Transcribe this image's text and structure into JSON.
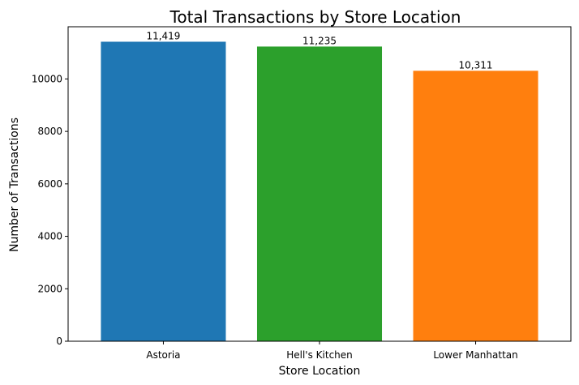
{
  "chart_data": {
    "type": "bar",
    "title": "Total Transactions by Store Location",
    "xlabel": "Store Location",
    "ylabel": "Number of Transactions",
    "categories": [
      "Astoria",
      "Hell's Kitchen",
      "Lower Manhattan"
    ],
    "values": [
      11419,
      11235,
      10311
    ],
    "data_labels": [
      "11,419",
      "11,235",
      "10,311"
    ],
    "colors": [
      "#1f77b4",
      "#2ca02c",
      "#ff7f0e"
    ],
    "ylim": [
      0,
      11990
    ],
    "yticks": [
      0,
      2000,
      4000,
      6000,
      8000,
      10000
    ],
    "grid": false,
    "legend": "none"
  }
}
